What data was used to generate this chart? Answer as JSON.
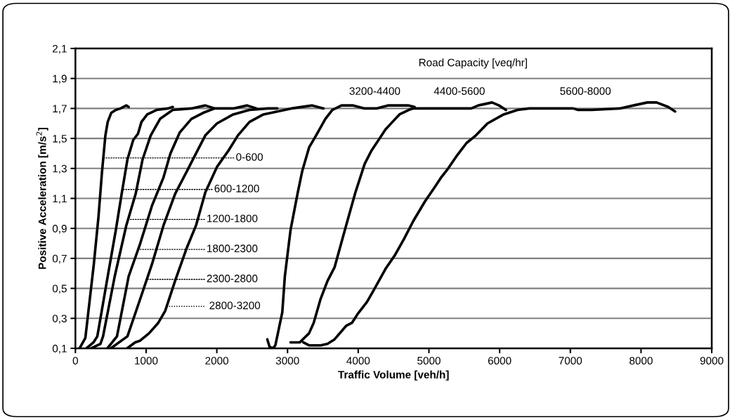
{
  "chart_data": {
    "type": "line",
    "xlabel": "Traffic Volume [veh/h]",
    "ylabel": "Positive Acceleration [m/s$^{2}$]",
    "xlim": [
      0,
      9000
    ],
    "xticks": [
      0,
      1000,
      2000,
      3000,
      4000,
      5000,
      6000,
      7000,
      8000,
      9000
    ],
    "ylim": [
      0.1,
      2.1
    ],
    "yticks": [
      {
        "value": 0.1,
        "label": "0,1"
      },
      {
        "value": 0.3,
        "label": "0,3"
      },
      {
        "value": 0.5,
        "label": "0,5"
      },
      {
        "value": 0.7,
        "label": "0,7"
      },
      {
        "value": 0.9,
        "label": "0,9"
      },
      {
        "value": 1.1,
        "label": "1,1"
      },
      {
        "value": 1.3,
        "label": "1,3"
      },
      {
        "value": 1.5,
        "label": "1,5"
      },
      {
        "value": 1.7,
        "label": "1,7"
      },
      {
        "value": 1.9,
        "label": "1,9"
      },
      {
        "value": 2.1,
        "label": "2,1"
      }
    ],
    "grid": "y",
    "legend": false,
    "marker": "none",
    "line_style": "solid",
    "series": [
      {
        "color": "#000000",
        "x": [
          59,
          141,
          260,
          325,
          375,
          424,
          457,
          506,
          572,
          638,
          720,
          753
        ],
        "values": [
          0.1,
          0.17,
          0.66,
          0.97,
          1.27,
          1.52,
          1.61,
          1.67,
          1.69,
          1.7,
          1.72,
          1.71
        ]
      },
      {
        "color": "#000000",
        "x": [
          157,
          256,
          310,
          457,
          572,
          654,
          736,
          818,
          884,
          934,
          1016,
          1147,
          1311,
          1377
        ],
        "values": [
          0.1,
          0.14,
          0.18,
          0.58,
          0.89,
          1.13,
          1.36,
          1.49,
          1.53,
          1.61,
          1.66,
          1.69,
          1.7,
          1.71
        ]
      },
      {
        "color": "#000000",
        "x": [
          223,
          354,
          391,
          556,
          720,
          852,
          950,
          1065,
          1197,
          1377,
          1640,
          1837,
          1969
        ],
        "values": [
          0.1,
          0.13,
          0.18,
          0.58,
          0.92,
          1.13,
          1.36,
          1.52,
          1.63,
          1.69,
          1.7,
          1.72,
          1.7
        ]
      },
      {
        "color": "#000000",
        "x": [
          452,
          588,
          753,
          917,
          1082,
          1246,
          1344,
          1476,
          1640,
          1804,
          1969,
          2232,
          2429,
          2560
        ],
        "values": [
          0.1,
          0.18,
          0.58,
          0.8,
          1.05,
          1.24,
          1.4,
          1.54,
          1.63,
          1.67,
          1.7,
          1.7,
          1.72,
          1.7
        ]
      },
      {
        "color": "#000000",
        "x": [
          500,
          736,
          917,
          1082,
          1246,
          1410,
          1575,
          1706,
          1837,
          2002,
          2232,
          2462,
          2725,
          2856
        ],
        "values": [
          0.1,
          0.18,
          0.43,
          0.66,
          0.92,
          1.13,
          1.28,
          1.4,
          1.52,
          1.6,
          1.66,
          1.69,
          1.7,
          1.7
        ]
      },
      {
        "color": "#000000",
        "x": [
          731,
          845,
          910,
          1041,
          1172,
          1270,
          1410,
          1575,
          1706,
          1837,
          2002,
          2166,
          2298,
          2462,
          2659,
          2856,
          3055,
          3350,
          3510
        ],
        "values": [
          0.1,
          0.14,
          0.15,
          0.2,
          0.27,
          0.35,
          0.55,
          0.77,
          0.92,
          1.14,
          1.31,
          1.42,
          1.52,
          1.61,
          1.66,
          1.68,
          1.7,
          1.72,
          1.7
        ]
      },
      {
        "color": "#000000",
        "x": [
          2714,
          2746,
          2795,
          2828,
          2877,
          2926,
          2962,
          3043,
          3141,
          3207,
          3305,
          3404,
          3535,
          3633,
          3764,
          3829,
          3929,
          4091,
          4255,
          4419,
          4714,
          4796
        ],
        "values": [
          0.16,
          0.11,
          0.1,
          0.12,
          0.23,
          0.34,
          0.58,
          0.89,
          1.13,
          1.28,
          1.44,
          1.52,
          1.63,
          1.69,
          1.72,
          1.72,
          1.72,
          1.7,
          1.7,
          1.72,
          1.72,
          1.71
        ]
      },
      {
        "color": "#000000",
        "x": [
          3042,
          3173,
          3304,
          3370,
          3468,
          3566,
          3665,
          3829,
          3960,
          4091,
          4189,
          4288,
          4386,
          4484,
          4583,
          4714,
          4780,
          4976,
          5598,
          5698,
          5893,
          5991,
          6089
        ],
        "values": [
          0.14,
          0.14,
          0.2,
          0.27,
          0.43,
          0.55,
          0.64,
          0.92,
          1.14,
          1.33,
          1.42,
          1.49,
          1.56,
          1.61,
          1.66,
          1.69,
          1.7,
          1.7,
          1.7,
          1.72,
          1.74,
          1.72,
          1.69
        ]
      },
      {
        "color": "#000000",
        "x": [
          3222,
          3304,
          3468,
          3566,
          3665,
          3829,
          3911,
          3993,
          4124,
          4222,
          4386,
          4517,
          4648,
          4780,
          4944,
          5075,
          5173,
          5272,
          5403,
          5533,
          5664,
          5828,
          6057,
          6254,
          6418,
          7041,
          7107,
          7303,
          7697,
          7893,
          8089,
          8220,
          8384,
          8482
        ],
        "values": [
          0.14,
          0.12,
          0.12,
          0.13,
          0.16,
          0.25,
          0.27,
          0.33,
          0.41,
          0.49,
          0.63,
          0.72,
          0.83,
          0.95,
          1.08,
          1.17,
          1.24,
          1.3,
          1.39,
          1.47,
          1.52,
          1.6,
          1.66,
          1.69,
          1.7,
          1.7,
          1.69,
          1.69,
          1.7,
          1.72,
          1.74,
          1.74,
          1.71,
          1.68
        ]
      }
    ],
    "annotations": [
      {
        "text": "0-600",
        "x": 395,
        "y": 1.37
      },
      {
        "text": "600-1200",
        "x": 665,
        "y": 1.16
      },
      {
        "text": "1200-1800",
        "x": 745,
        "y": 0.96
      },
      {
        "text": "1800-2300",
        "x": 887,
        "y": 0.76
      },
      {
        "text": "2300-2800",
        "x": 1010,
        "y": 0.56
      },
      "2800-3200",
      "3200-4400",
      "4400-5600",
      "5600-8000",
      "Road Capacity [veq/hr]"
    ]
  }
}
